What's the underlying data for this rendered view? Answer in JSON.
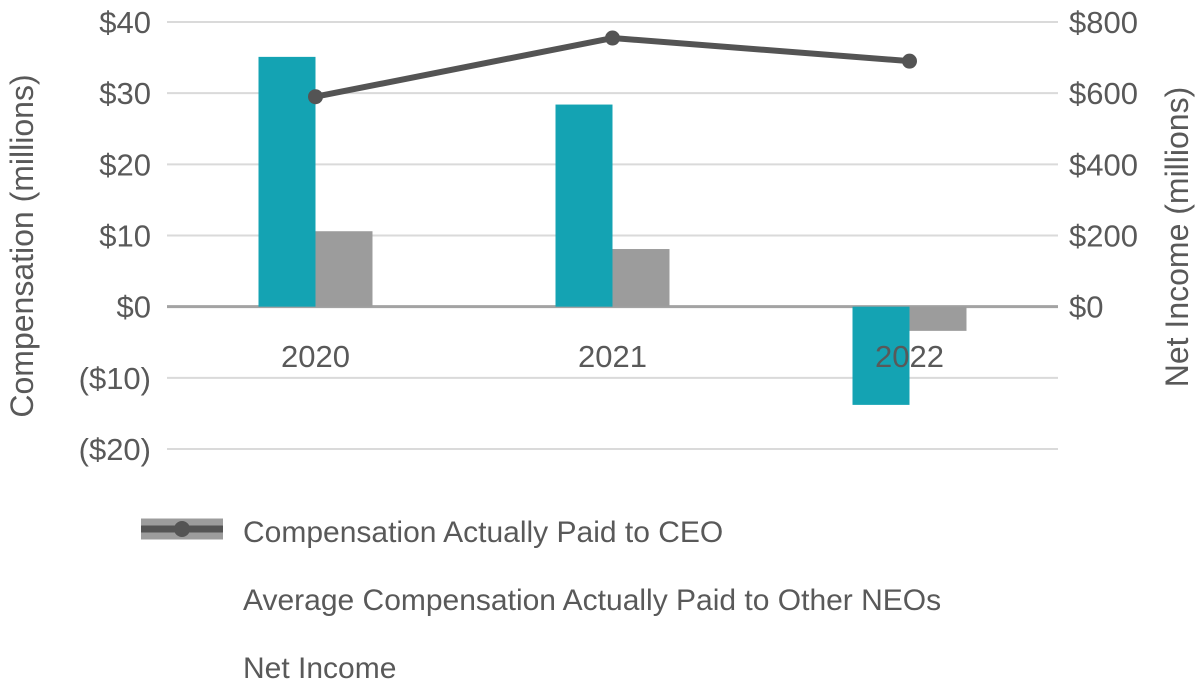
{
  "chart_data": {
    "type": "combo",
    "title": "",
    "categories": [
      "2020",
      "2021",
      "2022"
    ],
    "series": [
      {
        "name": "Compensation Actually Paid to CEO",
        "type": "bar",
        "axis": "left",
        "color": "#14A3B3",
        "values": [
          35.1,
          28.4,
          -13.8
        ]
      },
      {
        "name": "Average Compensation Actually Paid to Other NEOs",
        "type": "bar",
        "axis": "left",
        "color": "#9C9C9C",
        "values": [
          10.6,
          8.1,
          -3.4
        ]
      },
      {
        "name": "Net Income",
        "type": "line",
        "axis": "right",
        "color": "#545454",
        "values": [
          590,
          755,
          690
        ]
      }
    ],
    "left_axis": {
      "label": "Compensation (millions)",
      "min": -20,
      "max": 40,
      "tick_labels": [
        "$40",
        "$30",
        "$20",
        "$10",
        "$0",
        "($10)",
        "($20)"
      ]
    },
    "right_axis": {
      "label": "Net Income (millions)",
      "min": -400,
      "max": 800,
      "tick_labels": [
        "$800",
        "$600",
        "$400",
        "$200",
        "$0"
      ]
    },
    "grid": true,
    "legend_position": "bottom",
    "colors": {
      "gridline": "#DADADA",
      "zero_line": "#A3A3A3",
      "text": "#595959"
    }
  }
}
